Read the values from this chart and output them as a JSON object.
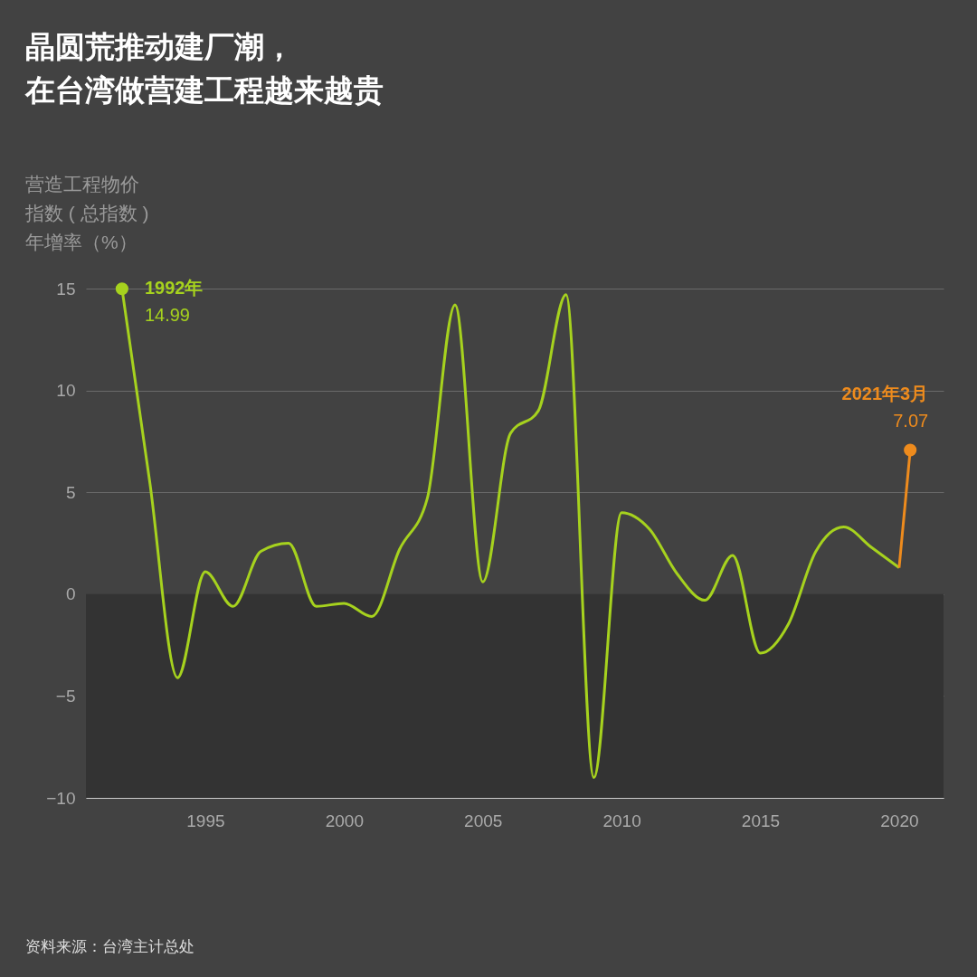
{
  "chart_data": {
    "type": "line",
    "title": "晶圆荒推动建厂潮，在台湾做营建工程越来越贵",
    "ylabel": "营造工程物价指数 ( 总指数 )年增率（%）",
    "series": [
      {
        "color": "#a6d21e",
        "x": [
          1992,
          1993,
          1994,
          1995,
          1996,
          1997,
          1998,
          1999,
          2000,
          2001,
          2002,
          2003,
          2004,
          2005,
          2006,
          2007,
          2008,
          2009,
          2010,
          2011,
          2012,
          2013,
          2014,
          2015,
          2016,
          2017,
          2018,
          2019,
          2020
        ],
        "values": [
          14.99,
          5.5,
          -4.1,
          1.1,
          -0.6,
          2.1,
          2.5,
          -0.6,
          -0.45,
          -1.1,
          2.2,
          4.7,
          14.2,
          0.6,
          7.9,
          9.0,
          14.7,
          -9.0,
          4.0,
          3.2,
          1.0,
          -0.3,
          1.9,
          -2.9,
          -1.5,
          2.1,
          3.3,
          2.3,
          1.3
        ]
      },
      {
        "color": "#ee8b1d",
        "x": [
          2020,
          2020.4
        ],
        "values": [
          1.3,
          7.07
        ]
      },
      {
        "type": "scatter",
        "color": "#a6d21e",
        "x": [
          1992
        ],
        "values": [
          14.99
        ]
      },
      {
        "type": "scatter",
        "color": "#ee8b1d",
        "x": [
          2020.4
        ],
        "values": [
          7.07
        ]
      }
    ],
    "xlim": [
      1990.7,
      2021.6
    ],
    "xticks": [
      1995,
      2000,
      2005,
      2010,
      2015,
      2020
    ],
    "ylim": [
      -10,
      15
    ],
    "yticks": [
      -10,
      -5,
      0,
      5,
      10,
      15
    ],
    "grid": "y",
    "bands": [
      {
        "axis": "y",
        "from": -10,
        "to": 0,
        "color": "#333333"
      }
    ],
    "annotations": [
      "1992年",
      "14.99",
      "2021年3月",
      "7.07",
      "资料来源：台湾主计总处"
    ]
  }
}
